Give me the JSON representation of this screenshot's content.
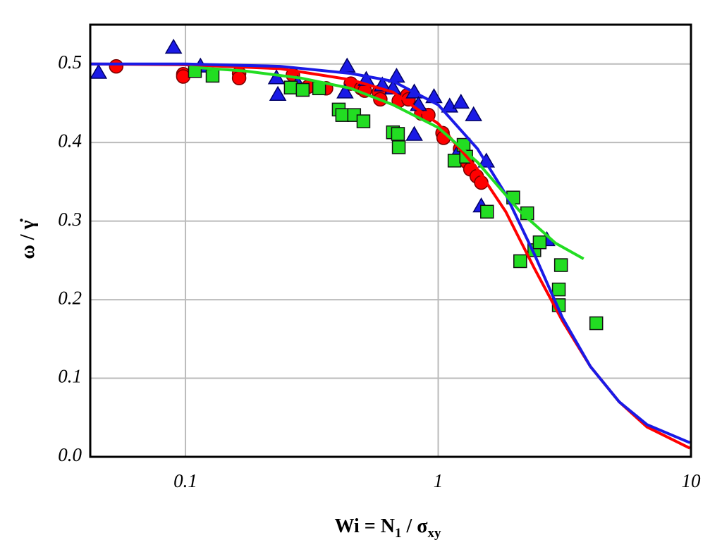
{
  "chart_data": {
    "type": "scatter",
    "xlabel": [
      "Wi = N",
      "1",
      " / σ",
      "xy"
    ],
    "ylabel": "ω / γ̇",
    "xscale": "log",
    "xlim": [
      0.042,
      10
    ],
    "xticks": [
      0.1,
      1,
      10
    ],
    "ylim": [
      0,
      0.55
    ],
    "yticks": [
      {
        "value": 0,
        "label": "0.0"
      },
      0.1,
      0.2,
      0.3,
      0.4,
      0.5
    ],
    "grid": true,
    "series": [
      {
        "kind": "circle",
        "color": "#ff0000",
        "x": [
          0.0532,
          0.098,
          0.098,
          0.163,
          0.163,
          0.266,
          0.306,
          0.36,
          0.451,
          0.496,
          0.512,
          0.582,
          0.59,
          0.698,
          0.754,
          0.763,
          0.857,
          0.914,
          1.04,
          1.05,
          1.22,
          1.3,
          1.34,
          1.42,
          1.48
        ],
        "values": [
          0.497,
          0.487,
          0.484,
          0.488,
          0.482,
          0.486,
          0.471,
          0.469,
          0.475,
          0.469,
          0.466,
          0.464,
          0.455,
          0.453,
          0.46,
          0.455,
          0.437,
          0.435,
          0.412,
          0.406,
          0.392,
          0.375,
          0.366,
          0.357,
          0.349
        ]
      },
      {
        "kind": "triangle",
        "color": "#1a1ae6",
        "x": [
          0.0453,
          0.0897,
          0.1146,
          0.229,
          0.232,
          0.278,
          0.436,
          0.428,
          0.519,
          0.601,
          0.662,
          0.684,
          0.804,
          0.835,
          0.804,
          0.962,
          1.11,
          1.23,
          1.38,
          1.48,
          1.55,
          1.2,
          2.69
        ],
        "values": [
          0.489,
          0.521,
          0.497,
          0.482,
          0.461,
          0.475,
          0.497,
          0.464,
          0.48,
          0.473,
          0.469,
          0.484,
          0.464,
          0.448,
          0.41,
          0.458,
          0.446,
          0.451,
          0.435,
          0.319,
          0.376,
          0.388,
          0.276
        ]
      },
      {
        "kind": "square",
        "color": "#22dd22",
        "x": [
          0.109,
          0.128,
          0.261,
          0.291,
          0.338,
          0.404,
          0.417,
          0.465,
          0.506,
          0.662,
          0.693,
          0.698,
          1.16,
          1.26,
          1.29,
          1.56,
          1.98,
          2.11,
          2.25,
          2.4,
          2.52,
          3.0,
          3.06,
          3.0,
          4.22
        ],
        "values": [
          0.491,
          0.485,
          0.47,
          0.467,
          0.469,
          0.442,
          0.435,
          0.435,
          0.427,
          0.413,
          0.411,
          0.394,
          0.377,
          0.397,
          0.382,
          0.312,
          0.33,
          0.249,
          0.31,
          0.263,
          0.273,
          0.213,
          0.244,
          0.193,
          0.17
        ]
      },
      {
        "kind": "line",
        "color": "#ff0000",
        "x": [
          0.042,
          0.1,
          0.237,
          0.45,
          0.663,
          1,
          1.43,
          1.85,
          2.4,
          3.1,
          4.0,
          5.2,
          6.7,
          9.9
        ],
        "values": [
          0.5,
          0.499,
          0.494,
          0.48,
          0.464,
          0.424,
          0.366,
          0.312,
          0.24,
          0.173,
          0.115,
          0.07,
          0.038,
          0.011
        ]
      },
      {
        "kind": "line",
        "color": "#1a1ae6",
        "x": [
          0.042,
          0.1,
          0.237,
          0.45,
          0.663,
          1,
          1.43,
          1.85,
          2.4,
          3.1,
          4.0,
          5.2,
          6.7,
          9.9
        ],
        "values": [
          0.5,
          0.5,
          0.497,
          0.488,
          0.478,
          0.448,
          0.392,
          0.334,
          0.258,
          0.177,
          0.115,
          0.07,
          0.041,
          0.018
        ]
      },
      {
        "kind": "line",
        "color": "#22dd22",
        "x": [
          0.104,
          0.172,
          0.287,
          0.45,
          0.663,
          1,
          1.43,
          2.11,
          2.91,
          3.76
        ],
        "values": [
          0.496,
          0.491,
          0.482,
          0.469,
          0.448,
          0.419,
          0.375,
          0.312,
          0.272,
          0.252
        ]
      }
    ]
  }
}
